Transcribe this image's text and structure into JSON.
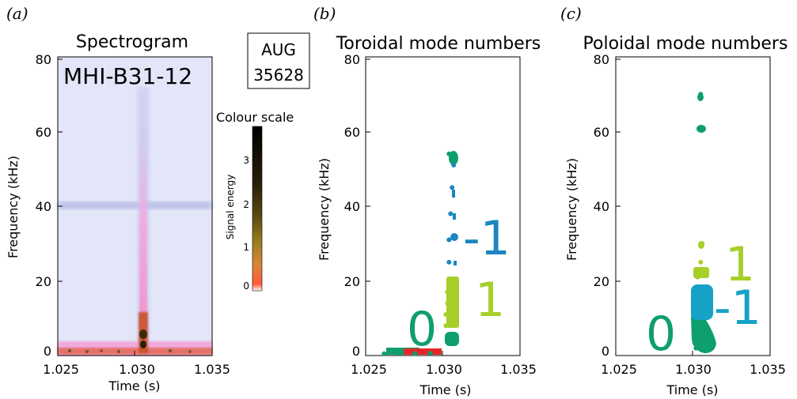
{
  "panels": {
    "a": {
      "letter": "(a)",
      "title": "Spectrogram",
      "diagnostic_label": "MHI-B31-12",
      "xlabel": "Time (s)",
      "ylabel": "Frequency (kHz)",
      "xticks": [
        "1.025",
        "1.030",
        "1.035"
      ],
      "yticks": [
        "0",
        "20",
        "40",
        "60",
        "80"
      ]
    },
    "b": {
      "letter": "(b)",
      "title": "Toroidal mode numbers",
      "xlabel": "Time (s)",
      "ylabel": "Frequency (kHz)",
      "xticks": [
        "1.025",
        "1.030",
        "1.035"
      ],
      "yticks": [
        "0",
        "20",
        "40",
        "60",
        "80"
      ],
      "mode_labels": [
        "0",
        "1",
        "-1"
      ]
    },
    "c": {
      "letter": "(c)",
      "title": "Poloidal mode numbers",
      "xlabel": "Time (s)",
      "ylabel": "Frequency (kHz)",
      "xticks": [
        "1.025",
        "1.030",
        "1.035"
      ],
      "yticks": [
        "0",
        "20",
        "40",
        "60",
        "80"
      ],
      "mode_labels": [
        "0",
        "-1",
        "1"
      ]
    }
  },
  "shot_box": {
    "line1": "AUG",
    "line2": "35628"
  },
  "colour_scale": {
    "title": "Colour scale",
    "label": "Signal energy",
    "ticks": [
      "0",
      "1",
      "2",
      "3"
    ]
  },
  "colors": {
    "mode_0": "#0f9e6e",
    "mode_1": "#a6cf2a",
    "mode_minus1": "#1b86c0",
    "mode_minus1_pol": "#16a1c7",
    "spectrogram_bg": "#dfe3f7",
    "spectrogram_peak": "#f0b0e0"
  },
  "chart_data": [
    {
      "type": "heatmap",
      "title": "Spectrogram",
      "xlabel": "Time (s)",
      "ylabel": "Frequency (kHz)",
      "xlim": [
        1.025,
        1.035
      ],
      "ylim": [
        0,
        80
      ],
      "features": [
        {
          "kind": "vertical_band",
          "time": 1.0305,
          "freq_range": [
            0,
            70
          ]
        },
        {
          "kind": "horizontal_band",
          "freq": 40,
          "time_range": [
            1.025,
            1.035
          ]
        },
        {
          "kind": "low_freq_strip",
          "freq_range": [
            0,
            2
          ],
          "time_range": [
            1.025,
            1.035
          ]
        }
      ],
      "colorbar": {
        "label": "Signal energy",
        "range": [
          0,
          4
        ],
        "ticks": [
          0,
          1,
          2,
          3
        ]
      }
    },
    {
      "type": "scatter",
      "title": "Toroidal mode numbers",
      "xlabel": "Time (s)",
      "ylabel": "Frequency (kHz)",
      "xlim": [
        1.025,
        1.035
      ],
      "ylim": [
        0,
        80
      ],
      "series": [
        {
          "name": "0",
          "color": "#0f9e6e",
          "x": [
            1.0262,
            1.0272,
            1.0282,
            1.0292,
            1.0303,
            1.0304
          ],
          "y": [
            0.5,
            0.6,
            0.5,
            0.6,
            4.5,
            54
          ]
        },
        {
          "name": "1",
          "color": "#a6cf2a",
          "x": [
            1.0302,
            1.0302,
            1.0303,
            1.0303,
            1.0304
          ],
          "y": [
            8,
            11,
            14,
            17,
            20
          ]
        },
        {
          "name": "-1",
          "color": "#1b86c0",
          "x": [
            1.0304,
            1.0304,
            1.0305,
            1.0306,
            1.0307
          ],
          "y": [
            25,
            31,
            38,
            45,
            51
          ]
        }
      ]
    },
    {
      "type": "scatter",
      "title": "Poloidal mode numbers",
      "xlabel": "Time (s)",
      "ylabel": "Frequency (kHz)",
      "xlim": [
        1.025,
        1.035
      ],
      "ylim": [
        0,
        80
      ],
      "series": [
        {
          "name": "0",
          "color": "#0f9e6e",
          "x": [
            1.0302,
            1.0304,
            1.0306,
            1.0305,
            1.0305
          ],
          "y": [
            2,
            5,
            8,
            61,
            70
          ]
        },
        {
          "name": "-1",
          "color": "#16a1c7",
          "x": [
            1.0302,
            1.0304,
            1.0306
          ],
          "y": [
            11,
            14,
            17
          ]
        },
        {
          "name": "1",
          "color": "#a6cf2a",
          "x": [
            1.0303,
            1.0305,
            1.0306
          ],
          "y": [
            21,
            25,
            30
          ]
        }
      ]
    }
  ]
}
